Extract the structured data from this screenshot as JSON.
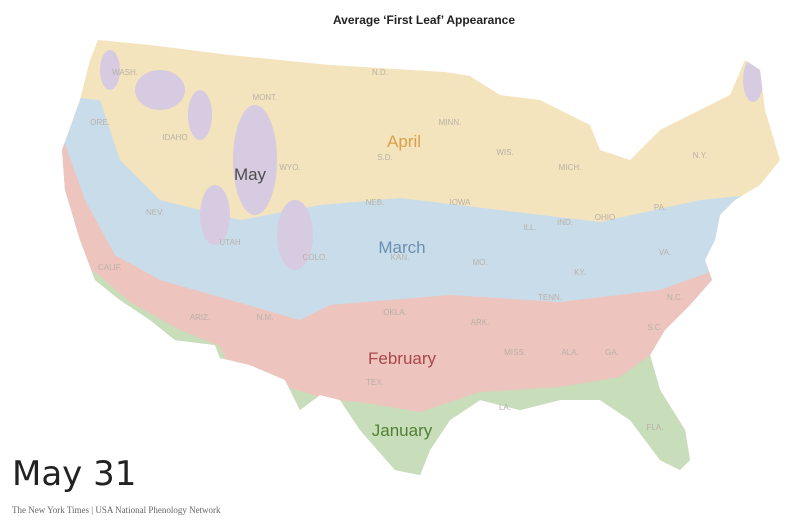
{
  "title": "Average ‘First Leaf’ Appearance",
  "regions": [
    {
      "label": "May"
    },
    {
      "label": "April"
    },
    {
      "label": "March"
    },
    {
      "label": "February"
    },
    {
      "label": "January"
    }
  ],
  "states": [
    "WASH.",
    "ORE.",
    "IDAHO",
    "MONT.",
    "WYO.",
    "N.D.",
    "S.D.",
    "MINN.",
    "WIS.",
    "MICH.",
    "N.Y.",
    "NEB.",
    "IOWA",
    "ILL.",
    "IND.",
    "OHIO",
    "PA.",
    "NEV.",
    "UTAH",
    "COLO.",
    "KAN.",
    "MO.",
    "KY.",
    "VA.",
    "CALIF.",
    "ARIZ.",
    "N.M.",
    "OKLA.",
    "ARK.",
    "TENN.",
    "N.C.",
    "S.C.",
    "MISS.",
    "ALA.",
    "GA.",
    "TEX.",
    "LA.",
    "FLA."
  ],
  "date": "May 31",
  "source": "The New York Times | USA National Phenology Network"
}
